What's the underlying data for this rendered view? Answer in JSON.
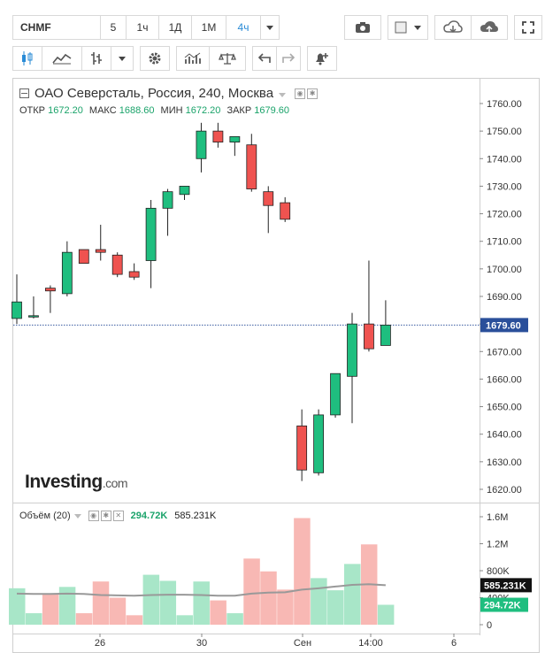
{
  "toolbar": {
    "symbol": "CHMF",
    "intervals": [
      "5",
      "1ч",
      "1Д",
      "1М",
      "4ч"
    ],
    "active_interval": "4ч"
  },
  "legend": {
    "title": "ОАО Северсталь, Россия, 240, Москва",
    "open_label": "ОТКР",
    "open": "1672.20",
    "high_label": "МАКС",
    "high": "1688.60",
    "low_label": "МИН",
    "low": "1672.20",
    "close_label": "ЗАКР",
    "close": "1679.60"
  },
  "volume_legend": {
    "label": "Объём (20)",
    "value": "294.72K",
    "ma": "585.231K"
  },
  "logo": {
    "main": "Investing",
    "suffix": ".com"
  },
  "colors": {
    "up": "#1fbe7f",
    "down": "#ef5350",
    "up_vol": "#a8e6c8",
    "down_vol": "#f8b8b4",
    "ma_line": "#999999"
  },
  "chart_data": {
    "type": "candlestick",
    "price_axis": {
      "min": 1615,
      "max": 1765,
      "ticks": [
        1620,
        1630,
        1640,
        1650,
        1660,
        1670,
        1680,
        1690,
        1700,
        1710,
        1720,
        1730,
        1740,
        1750,
        1760
      ]
    },
    "last_price": "1679.60",
    "x_labels": [
      "26",
      "30",
      "Сен",
      "14:00",
      "6"
    ],
    "candles": [
      {
        "o": 1682,
        "h": 1698,
        "l": 1680,
        "c": 1688
      },
      {
        "o": 1683,
        "h": 1690,
        "l": 1682,
        "c": 1683
      },
      {
        "o": 1693,
        "h": 1694,
        "l": 1684,
        "c": 1692
      },
      {
        "o": 1691,
        "h": 1710,
        "l": 1690,
        "c": 1706
      },
      {
        "o": 1707,
        "h": 1707,
        "l": 1702,
        "c": 1702
      },
      {
        "o": 1707,
        "h": 1716,
        "l": 1703,
        "c": 1706
      },
      {
        "o": 1705,
        "h": 1706,
        "l": 1697,
        "c": 1698
      },
      {
        "o": 1699,
        "h": 1702,
        "l": 1696,
        "c": 1697
      },
      {
        "o": 1703,
        "h": 1725,
        "l": 1693,
        "c": 1722
      },
      {
        "o": 1722,
        "h": 1729,
        "l": 1712,
        "c": 1728
      },
      {
        "o": 1727,
        "h": 1730,
        "l": 1725,
        "c": 1730
      },
      {
        "o": 1740,
        "h": 1753,
        "l": 1735,
        "c": 1750
      },
      {
        "o": 1750,
        "h": 1753,
        "l": 1744,
        "c": 1746
      },
      {
        "o": 1746,
        "h": 1748,
        "l": 1741,
        "c": 1748
      },
      {
        "o": 1745,
        "h": 1749,
        "l": 1728,
        "c": 1729
      },
      {
        "o": 1728,
        "h": 1730,
        "l": 1713,
        "c": 1723
      },
      {
        "o": 1724,
        "h": 1726,
        "l": 1717,
        "c": 1718
      },
      {
        "o": 1643,
        "h": 1649,
        "l": 1623,
        "c": 1627
      },
      {
        "o": 1626,
        "h": 1649,
        "l": 1625,
        "c": 1647
      },
      {
        "o": 1647,
        "h": 1662,
        "l": 1646,
        "c": 1662
      },
      {
        "o": 1661,
        "h": 1684,
        "l": 1644,
        "c": 1680
      },
      {
        "o": 1680,
        "h": 1703,
        "l": 1670,
        "c": 1671
      },
      {
        "o": 1672.2,
        "h": 1688.6,
        "l": 1672.2,
        "c": 1679.6
      }
    ],
    "volume_axis": {
      "max": 1800,
      "ticks_label": [
        "0",
        "400K",
        "800K",
        "1.2M",
        "1.6M"
      ],
      "ticks": [
        0,
        400,
        800,
        1200,
        1600
      ]
    },
    "volume": [
      540,
      170,
      460,
      560,
      170,
      640,
      400,
      140,
      740,
      650,
      140,
      640,
      360,
      170,
      980,
      790,
      520,
      1580,
      690,
      510,
      900,
      1190,
      295
    ],
    "volume_ma": [
      460,
      455,
      455,
      460,
      455,
      440,
      435,
      430,
      440,
      445,
      445,
      440,
      430,
      430,
      460,
      475,
      480,
      520,
      540,
      565,
      590,
      600,
      585
    ]
  }
}
